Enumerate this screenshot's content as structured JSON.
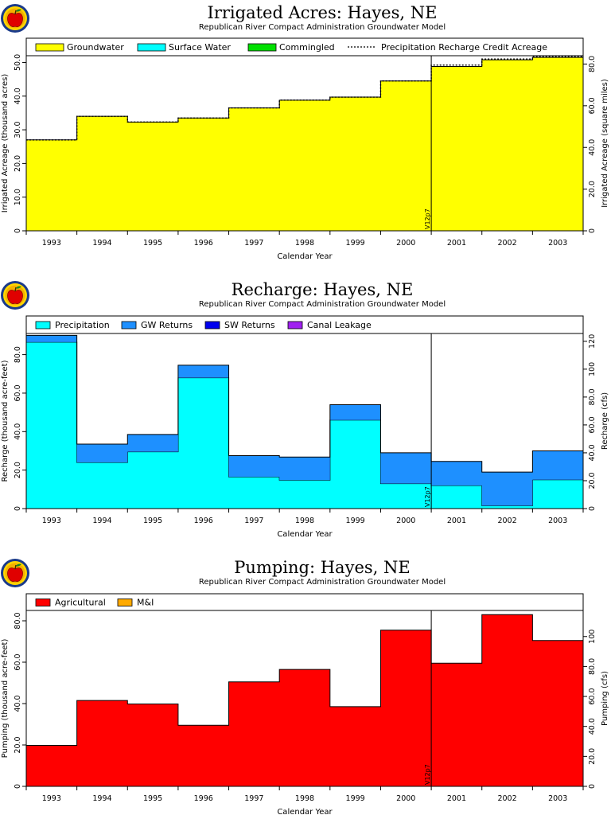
{
  "colors": {
    "groundwater": "#ffff00",
    "surface_water": "#00ffff",
    "commingled": "#00e000",
    "precipitation": "#00ffff",
    "gw_returns": "#1e90ff",
    "sw_returns": "#0000ee",
    "canal_leakage": "#a020f0",
    "agricultural": "#ff0000",
    "mi": "#ffaa00"
  },
  "icons": [
    "apple-logo-icon"
  ],
  "marker_label": "V12p7",
  "chart_data": [
    {
      "id": "irrigated",
      "type": "area",
      "title": "Irrigated Acres: Hayes, NE",
      "subtitle": "Republican River Compact Administration Groundwater Model",
      "xlabel": "Calendar Year",
      "ylabel": "Irrigated Acreage (thousand acres)",
      "ylabel_right": "Irrigated Acreage (square miles)",
      "categories": [
        "1993",
        "1994",
        "1995",
        "1996",
        "1997",
        "1998",
        "1999",
        "2000",
        "2001",
        "2002",
        "2003"
      ],
      "ylim": [
        0,
        52
      ],
      "yticks": [
        "0",
        "10.0",
        "20.0",
        "30.0",
        "40.0",
        "50.0"
      ],
      "y2lim": [
        0,
        84
      ],
      "y2ticks": [
        "0",
        "20.0",
        "40.0",
        "60.0",
        "80.0"
      ],
      "legend": [
        "Groundwater",
        "Surface Water",
        "Commingled",
        "Precipitation Recharge Credit Acreage"
      ],
      "series": [
        {
          "name": "Groundwater",
          "color_key": "groundwater",
          "values": [
            27.0,
            34.0,
            32.3,
            33.5,
            36.5,
            38.8,
            39.7,
            44.5,
            48.8,
            50.8,
            51.5
          ]
        },
        {
          "name": "Surface Water",
          "color_key": "surface_water",
          "values": [
            0,
            0,
            0,
            0,
            0,
            0,
            0,
            0,
            0,
            0,
            0
          ]
        },
        {
          "name": "Commingled",
          "color_key": "commingled",
          "values": [
            0,
            0,
            0,
            0,
            0,
            0,
            0,
            0,
            0,
            0,
            0
          ]
        },
        {
          "name": "Precipitation Recharge Credit Acreage",
          "color_key": "line",
          "values": [
            27.0,
            34.0,
            32.3,
            33.5,
            36.5,
            38.8,
            39.7,
            44.5,
            49.2,
            51.0,
            51.8
          ]
        }
      ]
    },
    {
      "id": "recharge",
      "type": "area",
      "title": "Recharge: Hayes, NE",
      "subtitle": "Republican River Compact Administration Groundwater Model",
      "xlabel": "Calendar Year",
      "ylabel": "Recharge (thousand acre-feet)",
      "ylabel_right": "Recharge (cfs)",
      "categories": [
        "1993",
        "1994",
        "1995",
        "1996",
        "1997",
        "1998",
        "1999",
        "2000",
        "2001",
        "2002",
        "2003"
      ],
      "ylim": [
        0,
        91
      ],
      "yticks": [
        "0",
        "20.0",
        "40.0",
        "60.0",
        "80.0"
      ],
      "y2lim": [
        0,
        125.6
      ],
      "y2ticks": [
        "0",
        "20.0",
        "40.0",
        "60.0",
        "80.0",
        "100",
        "120"
      ],
      "legend": [
        "Precipitation",
        "GW Returns",
        "SW Returns",
        "Canal Leakage"
      ],
      "series": [
        {
          "name": "Precipitation",
          "color_key": "precipitation",
          "values": [
            86.5,
            24.0,
            29.5,
            68.0,
            16.5,
            14.8,
            46.0,
            13.0,
            12.0,
            1.5,
            15.0
          ]
        },
        {
          "name": "GW Returns",
          "color_key": "gw_returns",
          "values": [
            3.5,
            9.5,
            9.0,
            6.5,
            11.0,
            12.0,
            8.0,
            16.0,
            12.5,
            17.5,
            15.0
          ]
        },
        {
          "name": "SW Returns",
          "color_key": "sw_returns",
          "values": [
            0,
            0,
            0,
            0,
            0,
            0,
            0,
            0,
            0,
            0,
            0
          ]
        },
        {
          "name": "Canal Leakage",
          "color_key": "canal_leakage",
          "values": [
            0,
            0,
            0,
            0,
            0,
            0,
            0,
            0,
            0,
            0,
            0
          ]
        }
      ]
    },
    {
      "id": "pumping",
      "type": "area",
      "title": "Pumping: Hayes, NE",
      "subtitle": "Republican River Compact Administration Groundwater Model",
      "xlabel": "Calendar Year",
      "ylabel": "Pumping (thousand acre-feet)",
      "ylabel_right": "Pumping (cfs)",
      "categories": [
        "1993",
        "1994",
        "1995",
        "1996",
        "1997",
        "1998",
        "1999",
        "2000",
        "2001",
        "2002",
        "2003"
      ],
      "ylim": [
        0,
        85
      ],
      "yticks": [
        "0",
        "20.0",
        "40.0",
        "60.0",
        "80.0"
      ],
      "y2lim": [
        0,
        117.4
      ],
      "y2ticks": [
        "0",
        "20.0",
        "40.0",
        "60.0",
        "80.0",
        "100"
      ],
      "legend": [
        "Agricultural",
        "M&I"
      ],
      "series": [
        {
          "name": "Agricultural",
          "color_key": "agricultural",
          "values": [
            19.8,
            41.5,
            39.8,
            29.5,
            50.5,
            56.5,
            38.5,
            75.5,
            59.5,
            83.0,
            70.5
          ]
        },
        {
          "name": "M&I",
          "color_key": "mi",
          "values": [
            0,
            0,
            0,
            0,
            0,
            0,
            0,
            0,
            0,
            0,
            0
          ]
        }
      ]
    }
  ]
}
